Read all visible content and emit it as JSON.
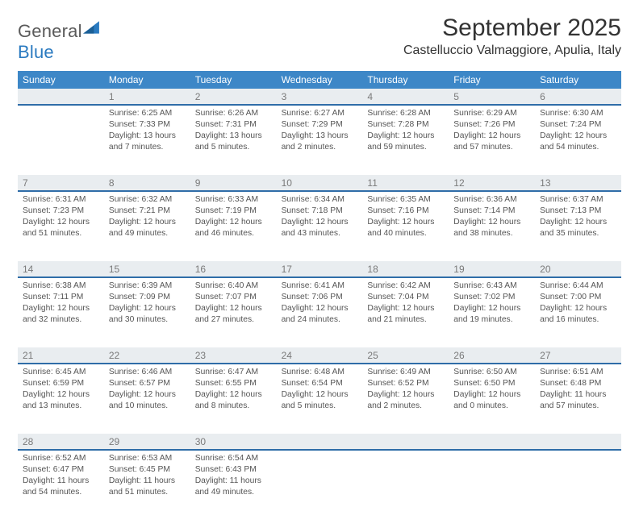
{
  "brand": {
    "name1": "General",
    "name2": "Blue"
  },
  "header": {
    "month_title": "September 2025",
    "location": "Castelluccio Valmaggiore, Apulia, Italy"
  },
  "colors": {
    "header_bar": "#3d87c7",
    "day_bg": "#e9edf0",
    "day_rule": "#2f6da8",
    "text": "#333333",
    "muted": "#555555",
    "brand_gray": "#5a5a5a",
    "brand_blue": "#2a7ac0",
    "background": "#ffffff"
  },
  "typography": {
    "month_title_pt": 22,
    "location_pt": 12,
    "dow_pt": 9,
    "daynum_pt": 9,
    "detail_pt": 8,
    "family": "Arial"
  },
  "days_of_week": [
    "Sunday",
    "Monday",
    "Tuesday",
    "Wednesday",
    "Thursday",
    "Friday",
    "Saturday"
  ],
  "grid": {
    "cols": 7,
    "rows": 5,
    "first_weekday_index": 1
  },
  "days": [
    {
      "n": "1",
      "sunrise": "Sunrise: 6:25 AM",
      "sunset": "Sunset: 7:33 PM",
      "daylight": "Daylight: 13 hours and 7 minutes."
    },
    {
      "n": "2",
      "sunrise": "Sunrise: 6:26 AM",
      "sunset": "Sunset: 7:31 PM",
      "daylight": "Daylight: 13 hours and 5 minutes."
    },
    {
      "n": "3",
      "sunrise": "Sunrise: 6:27 AM",
      "sunset": "Sunset: 7:29 PM",
      "daylight": "Daylight: 13 hours and 2 minutes."
    },
    {
      "n": "4",
      "sunrise": "Sunrise: 6:28 AM",
      "sunset": "Sunset: 7:28 PM",
      "daylight": "Daylight: 12 hours and 59 minutes."
    },
    {
      "n": "5",
      "sunrise": "Sunrise: 6:29 AM",
      "sunset": "Sunset: 7:26 PM",
      "daylight": "Daylight: 12 hours and 57 minutes."
    },
    {
      "n": "6",
      "sunrise": "Sunrise: 6:30 AM",
      "sunset": "Sunset: 7:24 PM",
      "daylight": "Daylight: 12 hours and 54 minutes."
    },
    {
      "n": "7",
      "sunrise": "Sunrise: 6:31 AM",
      "sunset": "Sunset: 7:23 PM",
      "daylight": "Daylight: 12 hours and 51 minutes."
    },
    {
      "n": "8",
      "sunrise": "Sunrise: 6:32 AM",
      "sunset": "Sunset: 7:21 PM",
      "daylight": "Daylight: 12 hours and 49 minutes."
    },
    {
      "n": "9",
      "sunrise": "Sunrise: 6:33 AM",
      "sunset": "Sunset: 7:19 PM",
      "daylight": "Daylight: 12 hours and 46 minutes."
    },
    {
      "n": "10",
      "sunrise": "Sunrise: 6:34 AM",
      "sunset": "Sunset: 7:18 PM",
      "daylight": "Daylight: 12 hours and 43 minutes."
    },
    {
      "n": "11",
      "sunrise": "Sunrise: 6:35 AM",
      "sunset": "Sunset: 7:16 PM",
      "daylight": "Daylight: 12 hours and 40 minutes."
    },
    {
      "n": "12",
      "sunrise": "Sunrise: 6:36 AM",
      "sunset": "Sunset: 7:14 PM",
      "daylight": "Daylight: 12 hours and 38 minutes."
    },
    {
      "n": "13",
      "sunrise": "Sunrise: 6:37 AM",
      "sunset": "Sunset: 7:13 PM",
      "daylight": "Daylight: 12 hours and 35 minutes."
    },
    {
      "n": "14",
      "sunrise": "Sunrise: 6:38 AM",
      "sunset": "Sunset: 7:11 PM",
      "daylight": "Daylight: 12 hours and 32 minutes."
    },
    {
      "n": "15",
      "sunrise": "Sunrise: 6:39 AM",
      "sunset": "Sunset: 7:09 PM",
      "daylight": "Daylight: 12 hours and 30 minutes."
    },
    {
      "n": "16",
      "sunrise": "Sunrise: 6:40 AM",
      "sunset": "Sunset: 7:07 PM",
      "daylight": "Daylight: 12 hours and 27 minutes."
    },
    {
      "n": "17",
      "sunrise": "Sunrise: 6:41 AM",
      "sunset": "Sunset: 7:06 PM",
      "daylight": "Daylight: 12 hours and 24 minutes."
    },
    {
      "n": "18",
      "sunrise": "Sunrise: 6:42 AM",
      "sunset": "Sunset: 7:04 PM",
      "daylight": "Daylight: 12 hours and 21 minutes."
    },
    {
      "n": "19",
      "sunrise": "Sunrise: 6:43 AM",
      "sunset": "Sunset: 7:02 PM",
      "daylight": "Daylight: 12 hours and 19 minutes."
    },
    {
      "n": "20",
      "sunrise": "Sunrise: 6:44 AM",
      "sunset": "Sunset: 7:00 PM",
      "daylight": "Daylight: 12 hours and 16 minutes."
    },
    {
      "n": "21",
      "sunrise": "Sunrise: 6:45 AM",
      "sunset": "Sunset: 6:59 PM",
      "daylight": "Daylight: 12 hours and 13 minutes."
    },
    {
      "n": "22",
      "sunrise": "Sunrise: 6:46 AM",
      "sunset": "Sunset: 6:57 PM",
      "daylight": "Daylight: 12 hours and 10 minutes."
    },
    {
      "n": "23",
      "sunrise": "Sunrise: 6:47 AM",
      "sunset": "Sunset: 6:55 PM",
      "daylight": "Daylight: 12 hours and 8 minutes."
    },
    {
      "n": "24",
      "sunrise": "Sunrise: 6:48 AM",
      "sunset": "Sunset: 6:54 PM",
      "daylight": "Daylight: 12 hours and 5 minutes."
    },
    {
      "n": "25",
      "sunrise": "Sunrise: 6:49 AM",
      "sunset": "Sunset: 6:52 PM",
      "daylight": "Daylight: 12 hours and 2 minutes."
    },
    {
      "n": "26",
      "sunrise": "Sunrise: 6:50 AM",
      "sunset": "Sunset: 6:50 PM",
      "daylight": "Daylight: 12 hours and 0 minutes."
    },
    {
      "n": "27",
      "sunrise": "Sunrise: 6:51 AM",
      "sunset": "Sunset: 6:48 PM",
      "daylight": "Daylight: 11 hours and 57 minutes."
    },
    {
      "n": "28",
      "sunrise": "Sunrise: 6:52 AM",
      "sunset": "Sunset: 6:47 PM",
      "daylight": "Daylight: 11 hours and 54 minutes."
    },
    {
      "n": "29",
      "sunrise": "Sunrise: 6:53 AM",
      "sunset": "Sunset: 6:45 PM",
      "daylight": "Daylight: 11 hours and 51 minutes."
    },
    {
      "n": "30",
      "sunrise": "Sunrise: 6:54 AM",
      "sunset": "Sunset: 6:43 PM",
      "daylight": "Daylight: 11 hours and 49 minutes."
    }
  ]
}
